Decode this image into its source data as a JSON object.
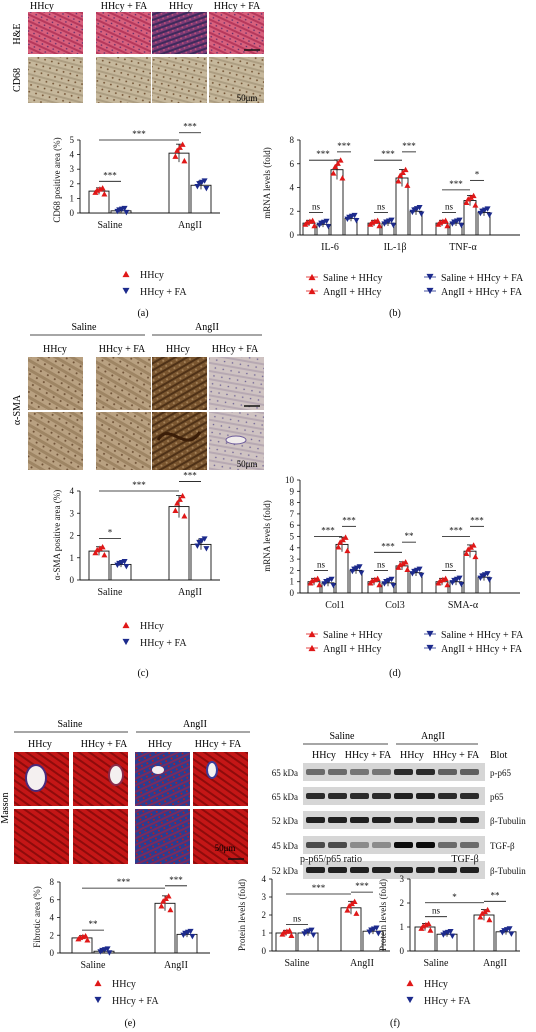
{
  "colors": {
    "red": "#e01818",
    "blue": "#1c2a8c",
    "black": "#111111"
  },
  "markers": {
    "red": "red-triangle-up",
    "blue": "blue-triangle-down"
  },
  "panel_a": {
    "letter": "(a)",
    "micro": {
      "headers": [
        "HHcy",
        "HHcy + FA",
        "HHcy",
        "HHcy + FA"
      ],
      "row_labels": [
        "H&E",
        "CD68"
      ],
      "scale_label": "50μm"
    },
    "legend": [
      "HHcy",
      "HHcy + FA"
    ]
  },
  "panel_b": {
    "letter": "(b)",
    "legend": [
      "Saline + HHcy",
      "AngII + HHcy",
      "Saline + HHcy + FA",
      "AngII + HHcy + FA"
    ]
  },
  "panel_c": {
    "letter": "(c)",
    "micro": {
      "group_labels": [
        "Saline",
        "AngII"
      ],
      "headers": [
        "HHcy",
        "HHcy + FA",
        "HHcy",
        "HHcy + FA"
      ],
      "row_label": "α-SMA",
      "scale_label": "50μm"
    },
    "legend": [
      "HHcy",
      "HHcy + FA"
    ]
  },
  "panel_d": {
    "letter": "(d)",
    "legend": [
      "Saline + HHcy",
      "AngII + HHcy",
      "Saline + HHcy + FA",
      "AngII + HHcy + FA"
    ]
  },
  "panel_e": {
    "letter": "(e)",
    "micro": {
      "group_labels": [
        "Saline",
        "AngII"
      ],
      "headers": [
        "HHcy",
        "HHcy + FA",
        "HHcy",
        "HHcy + FA"
      ],
      "row_label": "Masson",
      "scale_label": "50μm"
    },
    "legend": [
      "HHcy",
      "HHcy + FA"
    ]
  },
  "panel_f": {
    "letter": "(f)",
    "blot": {
      "group_labels": [
        "Saline",
        "AngII"
      ],
      "lane_headers": [
        "HHcy",
        "HHcy + FA",
        "HHcy",
        "HHcy + FA"
      ],
      "blot_label": "Blot",
      "sizes": [
        "65 kDa",
        "65 kDa",
        "52 kDa",
        "45 kDa",
        "52 kDa"
      ],
      "proteins": [
        "p-p65",
        "p65",
        "β-Tubulin",
        "TGF-β",
        "β-Tubulin"
      ]
    },
    "legend": [
      "HHcy",
      "HHcy + FA"
    ]
  },
  "chart_data": [
    {
      "id": "a",
      "type": "bar",
      "title": "",
      "ylabel": "CD68 positive area (%)",
      "categories": [
        "Saline",
        "AngII"
      ],
      "ylim": [
        0,
        5
      ],
      "yticks": [
        0,
        1,
        2,
        3,
        4,
        5
      ],
      "series": [
        {
          "name": "HHcy",
          "values": [
            1.5,
            4.1
          ]
        },
        {
          "name": "HHcy + FA",
          "values": [
            0.15,
            1.9
          ]
        }
      ],
      "annotations": [
        {
          "kind": "pair",
          "group": 0,
          "text": "***"
        },
        {
          "kind": "pair",
          "group": 1,
          "text": "***"
        },
        {
          "kind": "cross",
          "text": "***"
        }
      ]
    },
    {
      "id": "b",
      "type": "bar",
      "title": "",
      "ylabel": "mRNA levels (fold)",
      "categories": [
        "IL-6",
        "IL-1β",
        "TNF-α"
      ],
      "ylim": [
        0,
        8
      ],
      "yticks": [
        0,
        2,
        4,
        6,
        8
      ],
      "series": [
        {
          "name": "Saline + HHcy",
          "values": [
            1.0,
            1.0,
            1.0
          ]
        },
        {
          "name": "Saline + HHcy + FA",
          "values": [
            0.9,
            1.0,
            1.0
          ]
        },
        {
          "name": "AngII + HHcy",
          "values": [
            5.5,
            4.8,
            2.9
          ]
        },
        {
          "name": "AngII + HHcy + FA",
          "values": [
            1.4,
            2.0,
            1.9
          ]
        }
      ],
      "annotations": [
        {
          "group": 0,
          "a": 0,
          "b": 1,
          "level": 1.9,
          "text": "ns"
        },
        {
          "group": 0,
          "a": 0,
          "b": 2,
          "level": 6.3,
          "text": "***"
        },
        {
          "group": 0,
          "a": 2,
          "b": 3,
          "level": 7.0,
          "text": "***"
        },
        {
          "group": 1,
          "a": 0,
          "b": 1,
          "level": 1.9,
          "text": "ns"
        },
        {
          "group": 1,
          "a": 0,
          "b": 2,
          "level": 6.3,
          "text": "***"
        },
        {
          "group": 1,
          "a": 2,
          "b": 3,
          "level": 7.0,
          "text": "***"
        },
        {
          "group": 2,
          "a": 0,
          "b": 1,
          "level": 1.9,
          "text": "ns"
        },
        {
          "group": 2,
          "a": 0,
          "b": 2,
          "level": 3.8,
          "text": "***"
        },
        {
          "group": 2,
          "a": 2,
          "b": 3,
          "level": 4.6,
          "text": "*"
        }
      ]
    },
    {
      "id": "c",
      "type": "bar",
      "title": "",
      "ylabel": "α-SMA positive area (%)",
      "categories": [
        "Saline",
        "AngII"
      ],
      "ylim": [
        0,
        4
      ],
      "yticks": [
        0,
        1,
        2,
        3,
        4
      ],
      "series": [
        {
          "name": "HHcy",
          "values": [
            1.3,
            3.3
          ]
        },
        {
          "name": "HHcy + FA",
          "values": [
            0.7,
            1.6
          ]
        }
      ],
      "annotations": [
        {
          "kind": "pair",
          "group": 0,
          "text": "*"
        },
        {
          "kind": "pair",
          "group": 1,
          "text": "***"
        },
        {
          "kind": "cross",
          "text": "***"
        }
      ]
    },
    {
      "id": "d",
      "type": "bar",
      "title": "",
      "ylabel": "mRNA levels (fold)",
      "categories": [
        "Col1",
        "Col3",
        "SMA-α"
      ],
      "ylim": [
        0,
        10
      ],
      "yticks": [
        0,
        1,
        2,
        3,
        4,
        5,
        6,
        7,
        8,
        9,
        10
      ],
      "series": [
        {
          "name": "Saline + HHcy",
          "values": [
            1.0,
            1.0,
            1.0
          ]
        },
        {
          "name": "Saline + HHcy + FA",
          "values": [
            0.9,
            0.9,
            1.0
          ]
        },
        {
          "name": "AngII + HHcy",
          "values": [
            4.3,
            2.4,
            3.7
          ]
        },
        {
          "name": "AngII + HHcy + FA",
          "values": [
            2.0,
            1.8,
            1.4
          ]
        }
      ],
      "annotations": [
        {
          "group": 0,
          "a": 0,
          "b": 1,
          "level": 2.0,
          "text": "ns"
        },
        {
          "group": 0,
          "a": 0,
          "b": 2,
          "level": 5.0,
          "text": "***"
        },
        {
          "group": 0,
          "a": 2,
          "b": 3,
          "level": 5.9,
          "text": "***"
        },
        {
          "group": 1,
          "a": 0,
          "b": 1,
          "level": 2.0,
          "text": "ns"
        },
        {
          "group": 1,
          "a": 0,
          "b": 2,
          "level": 3.6,
          "text": "***"
        },
        {
          "group": 1,
          "a": 2,
          "b": 3,
          "level": 4.5,
          "text": "**"
        },
        {
          "group": 2,
          "a": 0,
          "b": 1,
          "level": 2.0,
          "text": "ns"
        },
        {
          "group": 2,
          "a": 0,
          "b": 2,
          "level": 5.0,
          "text": "***"
        },
        {
          "group": 2,
          "a": 2,
          "b": 3,
          "level": 5.9,
          "text": "***"
        }
      ]
    },
    {
      "id": "e",
      "type": "bar",
      "title": "",
      "ylabel": "Fibrotic area (%)",
      "categories": [
        "Saline",
        "AngII"
      ],
      "ylim": [
        0,
        8
      ],
      "yticks": [
        0,
        2,
        4,
        6,
        8
      ],
      "series": [
        {
          "name": "HHcy",
          "values": [
            1.7,
            5.6
          ]
        },
        {
          "name": "HHcy + FA",
          "values": [
            0.2,
            2.1
          ]
        }
      ],
      "annotations": [
        {
          "kind": "pair",
          "group": 0,
          "text": "**"
        },
        {
          "kind": "pair",
          "group": 1,
          "text": "***"
        },
        {
          "kind": "cross",
          "text": "***"
        }
      ]
    },
    {
      "id": "f1",
      "type": "bar",
      "title": "p-p65/p65 ratio",
      "ylabel": "Protein levels (fold)",
      "categories": [
        "Saline",
        "AngII"
      ],
      "ylim": [
        0,
        4
      ],
      "yticks": [
        0,
        1,
        2,
        3,
        4
      ],
      "series": [
        {
          "name": "HHcy",
          "values": [
            1.0,
            2.4
          ]
        },
        {
          "name": "HHcy + FA",
          "values": [
            1.0,
            1.1
          ]
        }
      ],
      "annotations": [
        {
          "kind": "pair",
          "group": 0,
          "text": "ns"
        },
        {
          "kind": "pair",
          "group": 1,
          "text": "***"
        },
        {
          "kind": "cross",
          "text": "***"
        }
      ]
    },
    {
      "id": "f2",
      "type": "bar",
      "title": "TGF-β",
      "ylabel": "Protein levels (fold)",
      "categories": [
        "Saline",
        "AngII"
      ],
      "ylim": [
        0,
        3
      ],
      "yticks": [
        0,
        1,
        2,
        3
      ],
      "series": [
        {
          "name": "HHcy",
          "values": [
            1.0,
            1.5
          ]
        },
        {
          "name": "HHcy + FA",
          "values": [
            0.7,
            0.8
          ]
        }
      ],
      "annotations": [
        {
          "kind": "pair",
          "group": 0,
          "text": "ns"
        },
        {
          "kind": "pair",
          "group": 1,
          "text": "**"
        },
        {
          "kind": "cross",
          "text": "*"
        }
      ]
    }
  ]
}
